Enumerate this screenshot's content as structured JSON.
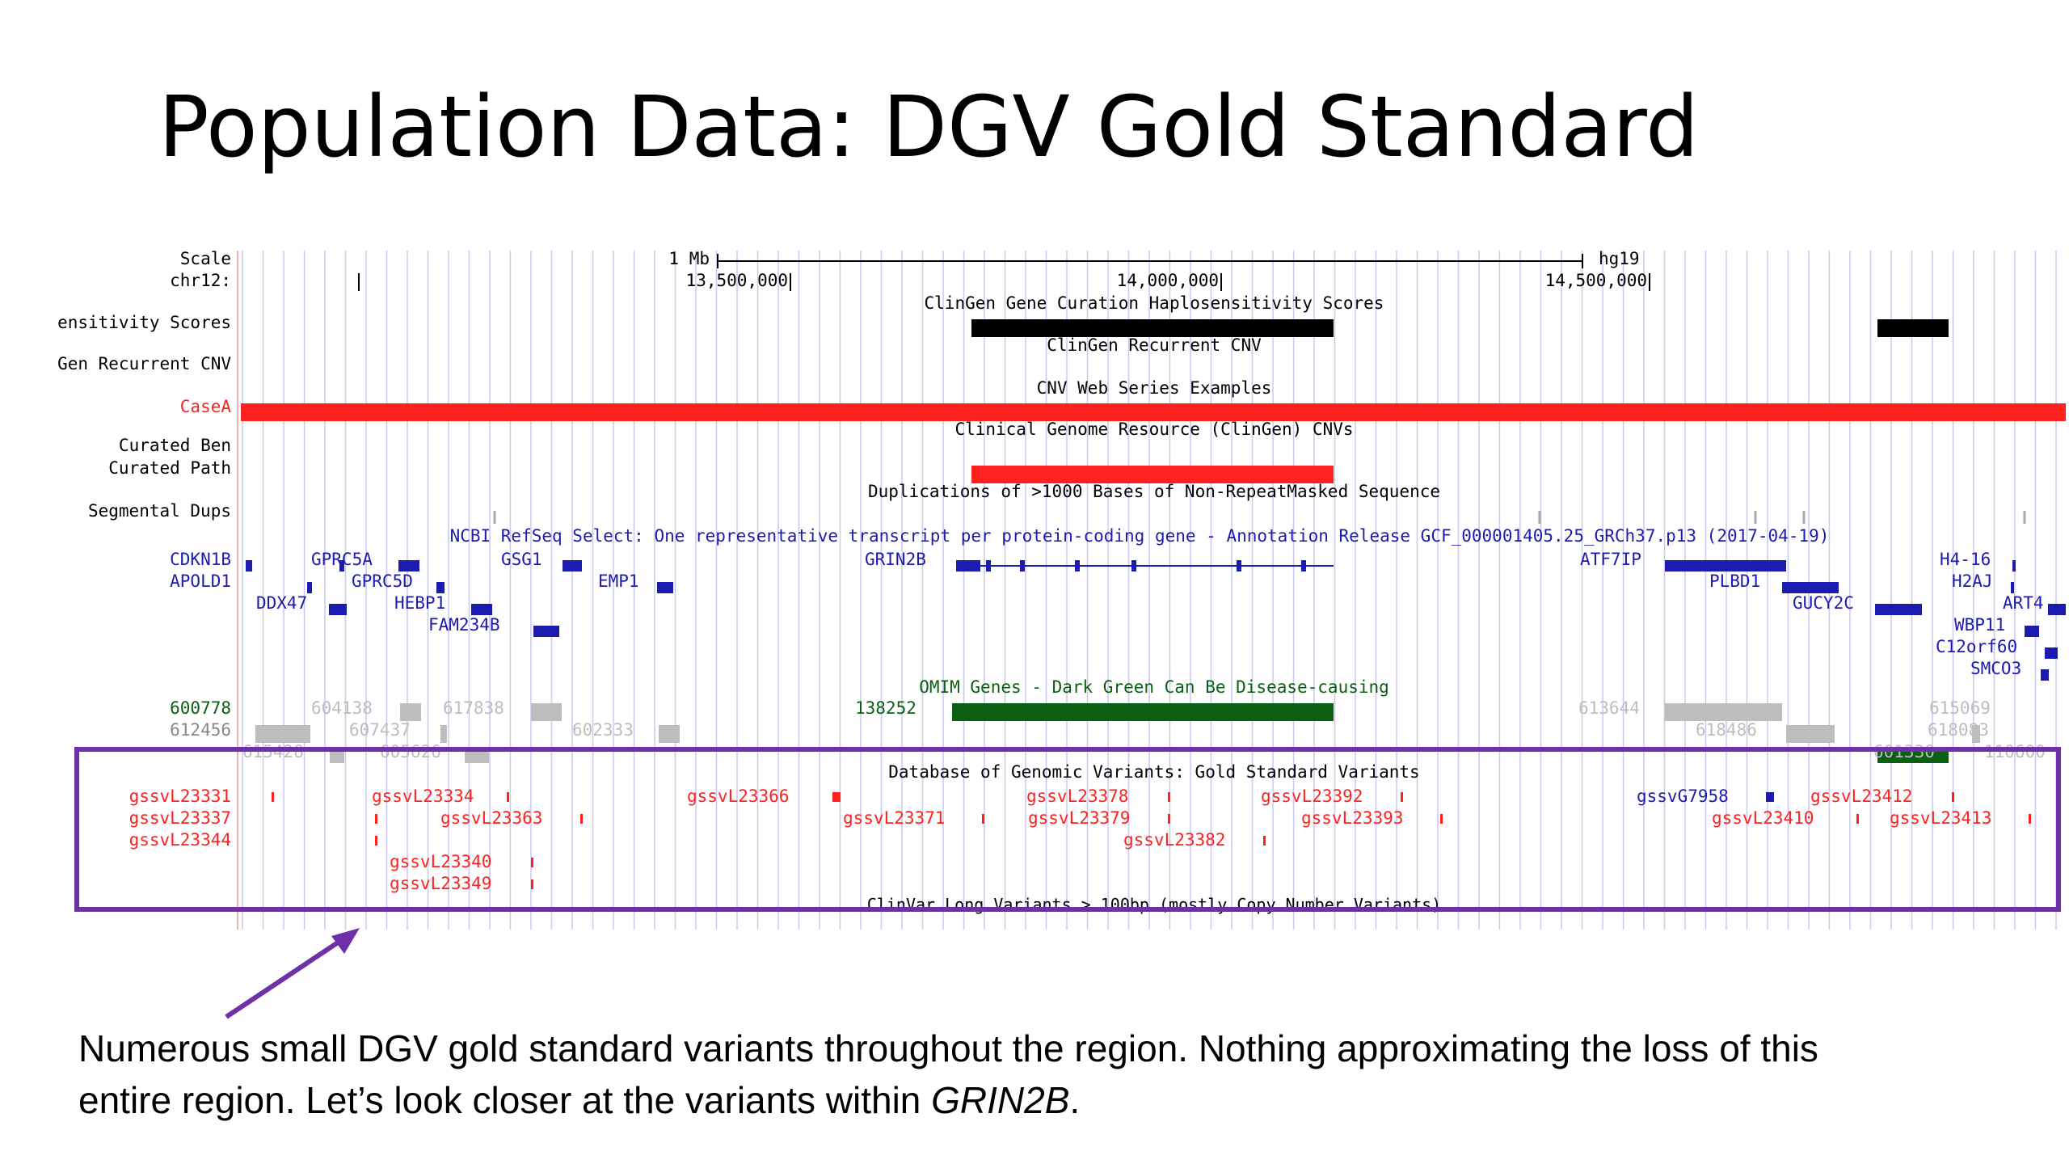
{
  "slide_title": "Population Data: DGV Gold Standard",
  "caption": {
    "line1": "Numerous small DGV gold standard variants throughout the region.  Nothing approximating the loss of this",
    "line2_plain": "entire region.  Let’s look closer at the variants within ",
    "line2_gene": "GRIN2B",
    "line2_end": "."
  },
  "colors": {
    "red": "#ff2020",
    "blue": "#1b1bb0",
    "black": "#000000",
    "dark_green": "#0b5f12",
    "gray": "#bdbdbd",
    "highlight_box": "#6f2fa8",
    "grid": "#c8c8f0"
  },
  "browser": {
    "left_labels": [
      {
        "id": "scale",
        "text": "Scale",
        "color": "#000000"
      },
      {
        "id": "chr",
        "text": "chr12:",
        "color": "#000000"
      },
      {
        "id": "haplo",
        "text": "ensitivity Scores",
        "color": "#000000"
      },
      {
        "id": "recurrent",
        "text": "Gen Recurrent CNV",
        "color": "#000000"
      },
      {
        "id": "casea",
        "text": "CaseA",
        "color": "#ff2020"
      },
      {
        "id": "curated-ben",
        "text": "Curated Ben",
        "color": "#000000"
      },
      {
        "id": "curated-path",
        "text": "Curated Path",
        "color": "#000000"
      },
      {
        "id": "segdups",
        "text": "Segmental Dups",
        "color": "#000000"
      },
      {
        "id": "cdkn1b",
        "text": "CDKN1B",
        "color": "#1b1bb0"
      },
      {
        "id": "apold1",
        "text": "APOLD1",
        "color": "#1b1bb0"
      },
      {
        "id": "omim1",
        "text": "600778",
        "color": "#0b5f12"
      },
      {
        "id": "omim2",
        "text": "612456",
        "color": "#888888"
      },
      {
        "id": "dgv1",
        "text": "gssvL23331",
        "color": "#ff2020"
      },
      {
        "id": "dgv2",
        "text": "gssvL23337",
        "color": "#ff2020"
      },
      {
        "id": "dgv3",
        "text": "gssvL23344",
        "color": "#ff2020"
      }
    ],
    "scale": {
      "bar_label": "1 Mb",
      "assembly": "hg19"
    },
    "ruler": [
      "13,500,000",
      "14,000,000",
      "14,500,000"
    ],
    "track_titles": {
      "haplo": "ClinGen Gene Curation Haplosensitivity Scores",
      "recurrent": "ClinGen Recurrent CNV",
      "cnv_web": "CNV Web Series Examples",
      "clingen_cnvs": "Clinical Genome Resource (ClinGen) CNVs",
      "segdups": "Duplications of >1000 Bases of Non-RepeatMasked Sequence",
      "refseq": "NCBI RefSeq Select: One representative transcript per protein-coding gene - Annotation Release GCF_000001405.25_GRCh37.p13 (2017-04-19)",
      "omim": "OMIM Genes - Dark Green Can Be Disease-causing",
      "dgv": "Database of Genomic Variants: Gold Standard Variants",
      "clinvar": "ClinVar Long Variants > 100bp (mostly Copy Number Variants)"
    },
    "genes": [
      "GPRC5A",
      "GSG1",
      "GRIN2B",
      "ATF7IP",
      "H4-16",
      "GPRC5D",
      "EMP1",
      "PLBD1",
      "H2AJ",
      "DDX47",
      "HEBP1",
      "GUCY2C",
      "ART4",
      "FAM234B",
      "WBP11",
      "C12orf60",
      "SMCO3"
    ],
    "omim_ids": [
      "604138",
      "617838",
      "138252",
      "613644",
      "615069",
      "607437",
      "602333",
      "618486",
      "618083",
      "615428",
      "605626",
      "601330",
      "110600"
    ],
    "dgv_variants": [
      "gssvL23334",
      "gssvL23366",
      "gssvL23378",
      "gssvL23392",
      "gssvG7958",
      "gssvL23412",
      "gssvL23363",
      "gssvL23371",
      "gssvL23379",
      "gssvL23393",
      "gssvL23410",
      "gssvL23413",
      "gssvL23382",
      "gssvL23340",
      "gssvL23349"
    ]
  }
}
